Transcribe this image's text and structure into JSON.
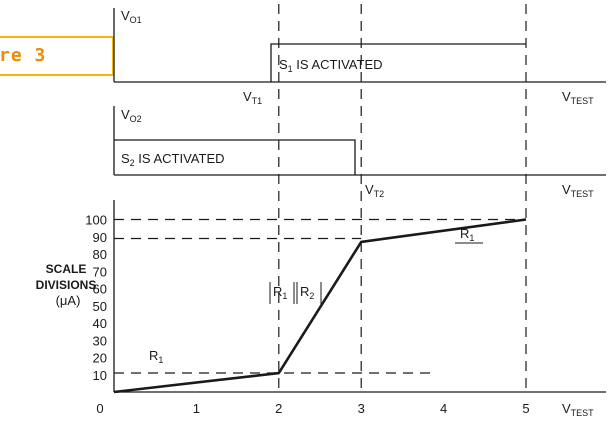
{
  "figure_label": "re 3",
  "top_panel": {
    "axis_label": "V",
    "axis_label_sub": "O1",
    "event_prefix": "S",
    "event_sub": "1",
    "event_text": " IS ACTIVATED",
    "threshold_label": "V",
    "threshold_sub": "T1",
    "x_end_label": "V",
    "x_end_sub": "TEST"
  },
  "middle_panel": {
    "axis_label": "V",
    "axis_label_sub": "O2",
    "event_prefix": "S",
    "event_sub": "2",
    "event_text": " IS ACTIVATED",
    "threshold_label": "V",
    "threshold_sub": "T2",
    "x_end_label": "V",
    "x_end_sub": "TEST"
  },
  "bottom_panel": {
    "ylabel_line1": "SCALE",
    "ylabel_line2": "DIVISIONS",
    "ylabel_line3": "(μA)",
    "x_end_label": "V",
    "x_end_sub": "TEST",
    "segment_label_low": "R",
    "segment_label_low_sub": "1",
    "segment_label_mid_a": "R",
    "segment_label_mid_a_sub": "1",
    "segment_label_mid_b": "R",
    "segment_label_mid_b_sub": "2",
    "segment_label_high": "R",
    "segment_label_high_sub": "1"
  },
  "chart_data": {
    "type": "line",
    "x": [
      0,
      2,
      3,
      5
    ],
    "y": [
      0,
      11,
      87,
      100
    ],
    "x_ticks": [
      "0",
      "1",
      "2",
      "3",
      "4",
      "5"
    ],
    "y_ticks": [
      "10",
      "20",
      "30",
      "40",
      "50",
      "60",
      "70",
      "80",
      "90",
      "100"
    ],
    "xlim": [
      0,
      5
    ],
    "ylim": [
      0,
      100
    ],
    "reference_y": [
      100,
      89,
      11
    ],
    "reference_x": [
      2,
      3,
      5
    ],
    "line_color": "#1a1a1a"
  }
}
